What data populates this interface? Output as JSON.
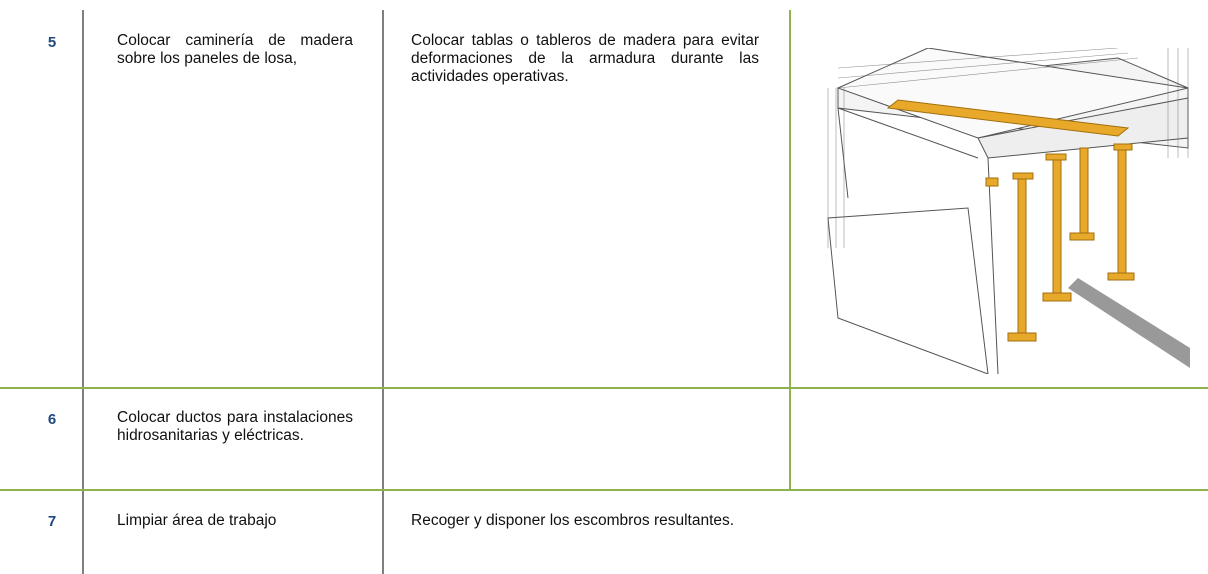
{
  "table": {
    "rows": [
      {
        "number": "5",
        "step": "Colocar caminería de madera sobre los paneles de losa,",
        "description": "Colocar tablas o tableros de madera para evitar deformaciones de la armadura durante las actividades operativas."
      },
      {
        "number": "6",
        "step": "Colocar ductos para instalaciones hidrosanitarias y eléctricas."
      },
      {
        "number": "7",
        "step": "Limpiar área de trabajo",
        "description": "Recoger y disponer los escombros resultantes."
      }
    ]
  }
}
